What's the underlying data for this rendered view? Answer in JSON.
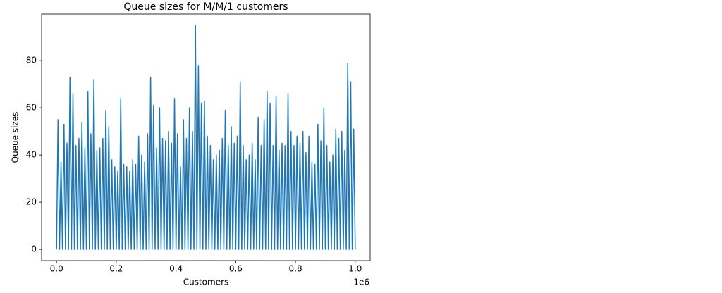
{
  "chart_data": {
    "type": "line",
    "title": "Queue sizes for M/M/1 customers",
    "x_label": "Customers",
    "y_label": "Queue sizes",
    "x_offset_label": "1e6",
    "x": [
      0,
      5000,
      10000,
      15000,
      20000,
      25000,
      30000,
      35000,
      40000,
      45000,
      50000,
      55000,
      60000,
      65000,
      70000,
      75000,
      80000,
      85000,
      90000,
      95000,
      100000,
      105000,
      110000,
      115000,
      120000,
      125000,
      130000,
      135000,
      140000,
      145000,
      150000,
      155000,
      160000,
      165000,
      170000,
      175000,
      180000,
      185000,
      190000,
      195000,
      200000,
      205000,
      210000,
      215000,
      220000,
      225000,
      230000,
      235000,
      240000,
      245000,
      250000,
      255000,
      260000,
      265000,
      270000,
      275000,
      280000,
      285000,
      290000,
      295000,
      300000,
      305000,
      310000,
      315000,
      320000,
      325000,
      330000,
      335000,
      340000,
      345000,
      350000,
      355000,
      360000,
      365000,
      370000,
      375000,
      380000,
      385000,
      390000,
      395000,
      400000,
      405000,
      410000,
      415000,
      420000,
      425000,
      430000,
      435000,
      440000,
      445000,
      450000,
      455000,
      460000,
      465000,
      470000,
      475000,
      480000,
      485000,
      490000,
      495000,
      500000,
      505000,
      510000,
      515000,
      520000,
      525000,
      530000,
      535000,
      540000,
      545000,
      550000,
      555000,
      560000,
      565000,
      570000,
      575000,
      580000,
      585000,
      590000,
      595000,
      600000,
      605000,
      610000,
      615000,
      620000,
      625000,
      630000,
      635000,
      640000,
      645000,
      650000,
      655000,
      660000,
      665000,
      670000,
      675000,
      680000,
      685000,
      690000,
      695000,
      700000,
      705000,
      710000,
      715000,
      720000,
      725000,
      730000,
      735000,
      740000,
      745000,
      750000,
      755000,
      760000,
      765000,
      770000,
      775000,
      780000,
      785000,
      790000,
      795000,
      800000,
      805000,
      810000,
      815000,
      820000,
      825000,
      830000,
      835000,
      840000,
      845000,
      850000,
      855000,
      860000,
      865000,
      870000,
      875000,
      880000,
      885000,
      890000,
      895000,
      900000,
      905000,
      910000,
      915000,
      920000,
      925000,
      930000,
      935000,
      940000,
      945000,
      950000,
      955000,
      960000,
      965000,
      970000,
      975000,
      980000,
      985000,
      990000,
      995000,
      1000000
    ],
    "series": [
      {
        "name": "Queue sizes",
        "color": "#1f77b4",
        "values": [
          0,
          55,
          0,
          37,
          0,
          53,
          0,
          45,
          0,
          73,
          0,
          66,
          0,
          44,
          0,
          47,
          0,
          54,
          0,
          43,
          0,
          67,
          0,
          49,
          0,
          72,
          0,
          42,
          0,
          43,
          0,
          47,
          0,
          59,
          0,
          52,
          0,
          38,
          0,
          35,
          0,
          33,
          0,
          64,
          0,
          36,
          0,
          35,
          0,
          33,
          0,
          38,
          0,
          36,
          0,
          48,
          0,
          40,
          0,
          37,
          0,
          49,
          0,
          73,
          0,
          61,
          0,
          43,
          0,
          60,
          0,
          47,
          0,
          46,
          0,
          50,
          0,
          45,
          0,
          64,
          0,
          49,
          0,
          35,
          0,
          55,
          0,
          47,
          0,
          60,
          0,
          50,
          0,
          95,
          0,
          78,
          0,
          62,
          0,
          63,
          0,
          48,
          0,
          44,
          0,
          38,
          0,
          40,
          0,
          42,
          0,
          47,
          0,
          59,
          0,
          44,
          0,
          52,
          0,
          45,
          0,
          48,
          0,
          71,
          0,
          44,
          0,
          38,
          0,
          40,
          0,
          45,
          0,
          38,
          0,
          56,
          0,
          44,
          0,
          55,
          0,
          67,
          0,
          62,
          0,
          44,
          0,
          65,
          0,
          42,
          0,
          45,
          0,
          44,
          0,
          66,
          0,
          50,
          0,
          44,
          0,
          48,
          0,
          45,
          0,
          50,
          0,
          41,
          0,
          48,
          0,
          37,
          0,
          36,
          0,
          53,
          0,
          46,
          0,
          60,
          0,
          44,
          0,
          37,
          0,
          40,
          0,
          51,
          0,
          47,
          0,
          50,
          0,
          42,
          0,
          79,
          0,
          71,
          0,
          51,
          0
        ]
      }
    ],
    "xlim": [
      -50000,
      1050000
    ],
    "ylim": [
      -4.75,
      99.75
    ],
    "xticks": [
      {
        "value": 0,
        "label": "0.0"
      },
      {
        "value": 200000,
        "label": "0.2"
      },
      {
        "value": 400000,
        "label": "0.4"
      },
      {
        "value": 600000,
        "label": "0.6"
      },
      {
        "value": 800000,
        "label": "0.8"
      },
      {
        "value": 1000000,
        "label": "1.0"
      }
    ],
    "yticks": [
      0,
      20,
      40,
      60,
      80
    ]
  }
}
